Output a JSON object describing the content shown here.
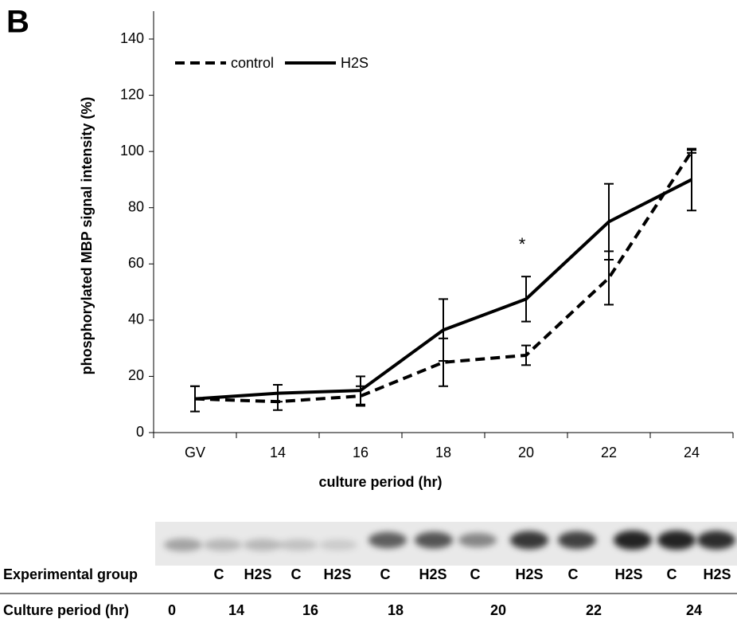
{
  "panel_label": "B",
  "chart_data": {
    "type": "line",
    "xlabel": "culture period (hr)",
    "ylabel": "phosphorylated MBP signal intensity (%)",
    "categories": [
      "GV",
      "14",
      "16",
      "18",
      "20",
      "22",
      "24"
    ],
    "series": [
      {
        "name": "control",
        "color": "#000000",
        "dash": true,
        "values": [
          12,
          11,
          13,
          25,
          27.5,
          55,
          100
        ],
        "errors": [
          4.5,
          3,
          3.5,
          8.5,
          3.5,
          9.5,
          0.5
        ]
      },
      {
        "name": "H2S",
        "color": "#000000",
        "dash": false,
        "values": [
          12,
          14,
          15,
          36.5,
          47.5,
          75,
          90
        ],
        "errors": [
          4.5,
          3,
          5,
          11,
          8,
          13.5,
          11
        ]
      }
    ],
    "ylim": [
      0,
      140
    ],
    "yticks": [
      0,
      20,
      40,
      60,
      80,
      100,
      120,
      140
    ],
    "legend": "upper left",
    "annotation": "*"
  },
  "blot": {
    "group_label": "Experimental group",
    "groups": [
      "C",
      "H2S",
      "C",
      "H2S",
      "C",
      "H2S",
      "C",
      "H2S",
      "C",
      "H2S",
      "C",
      "H2S"
    ],
    "period_label": "Culture period (hr)",
    "periods": [
      "0",
      "14",
      "16",
      "18",
      "20",
      "22",
      "24"
    ]
  }
}
